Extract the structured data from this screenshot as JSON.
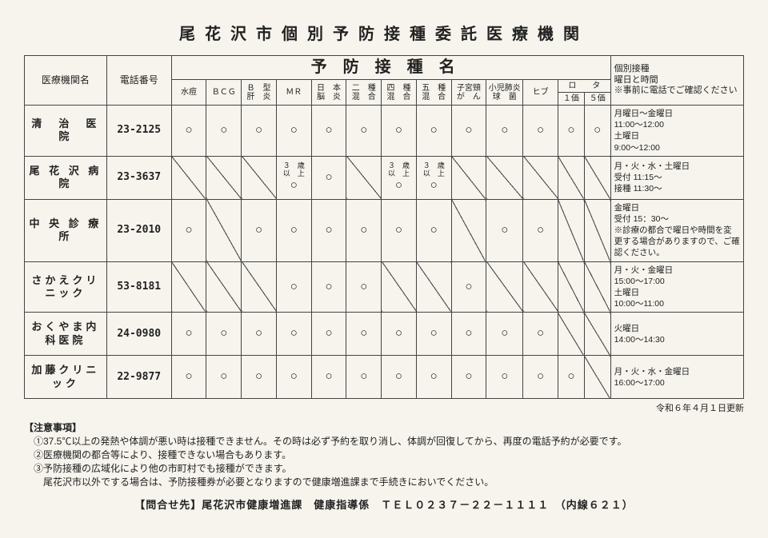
{
  "title": "尾花沢市個別予防接種委託医療機関",
  "header": {
    "institution": "医療機関名",
    "telephone": "電話番号",
    "vaccine_group": "予防接種名",
    "schedule": "個別接種\n曜日と時間\n※事前に電話でご確認ください"
  },
  "vaccines": [
    "水痘",
    "ＢＣＧ",
    "Ｂ　型\n肝　炎",
    "ＭＲ",
    "日　本\n脳　炎",
    "二　種\n混　合",
    "四　種\n混　合",
    "五　種\n混　合",
    "子宮頸\nが　ん",
    "小児肺炎\n球　菌",
    "ヒブ"
  ],
  "rota": {
    "label": "ロ　　タ",
    "sub": [
      "１価",
      "５価"
    ]
  },
  "rows": [
    {
      "name": "清　治　医　院",
      "tel": "23-2125",
      "marks": [
        "○",
        "○",
        "○",
        "○",
        "○",
        "○",
        "○",
        "○",
        "○",
        "○",
        "○"
      ],
      "rota": [
        "○",
        "○"
      ],
      "schedule": "月曜日〜金曜日\n11:00〜12:00\n土曜日\n 9:00〜12:00"
    },
    {
      "name": "尾 花 沢 病 院",
      "tel": "23-3637",
      "marks": [
        "/",
        "/",
        "/",
        {
          "note": "３　歳\n以　上",
          "mark": "○"
        },
        "○",
        "/",
        {
          "note": "３　歳\n以　上",
          "mark": "○"
        },
        {
          "note": "３　歳\n以　上",
          "mark": "○"
        },
        "/",
        "/",
        "/"
      ],
      "rota": [
        "/",
        "/"
      ],
      "schedule": "月・火・水・土曜日\n受付 11:15〜\n接種 11:30〜"
    },
    {
      "name": "中 央 診 療 所",
      "tel": "23-2010",
      "marks": [
        "○",
        "/",
        "○",
        "○",
        "○",
        "○",
        "○",
        "○",
        "/",
        "○",
        "○"
      ],
      "rota": [
        "/",
        "/"
      ],
      "schedule": "金曜日\n受付 15：30〜\n※診療の都合で曜日や時間を変更する場合がありますので、ご確認ください。"
    },
    {
      "name": "さかえクリニック",
      "tel": "53-8181",
      "marks": [
        "/",
        "/",
        "/",
        "○",
        "○",
        "○",
        "/",
        "/",
        "○",
        "/",
        "/"
      ],
      "rota": [
        "/",
        "/"
      ],
      "schedule": "月・火・金曜日\n15:00〜17:00\n土曜日\n10:00〜11:00"
    },
    {
      "name": "おくやま内科医院",
      "tel": "24-0980",
      "marks": [
        "○",
        "○",
        "○",
        "○",
        "○",
        "○",
        "○",
        "○",
        "○",
        "○",
        "○"
      ],
      "rota": [
        "/",
        "/"
      ],
      "schedule": "火曜日\n14:00〜14:30"
    },
    {
      "name": "加藤クリニック",
      "tel": "22-9877",
      "marks": [
        "○",
        "○",
        "○",
        "○",
        "○",
        "○",
        "○",
        "○",
        "○",
        "○",
        "○"
      ],
      "rota": [
        "○",
        "/"
      ],
      "schedule": "月・火・水・金曜日\n16:00〜17:00"
    }
  ],
  "update": "令和６年４月１日更新",
  "notes": {
    "heading": "【注意事項】",
    "items": [
      "①37.5℃以上の発熱や体調が悪い時は接種できません。その時は必ず予約を取り消し、体調が回復してから、再度の電話予約が必要です。",
      "②医療機関の都合等により、接種できない場合もあります。",
      "③予防接種の広域化により他の市町村でも接種ができます。",
      "　尾花沢市以外でする場合は、予防接種券が必要となりますので健康増進課まで手続きにおいでください。"
    ]
  },
  "contact": "【問合せ先】尾花沢市健康増進課　健康指導係　ＴＥＬ０２３７－２２－１１１１　（内線６２１）",
  "colors": {
    "bg": "#f6f4ed",
    "fg": "#222",
    "border": "#444"
  }
}
